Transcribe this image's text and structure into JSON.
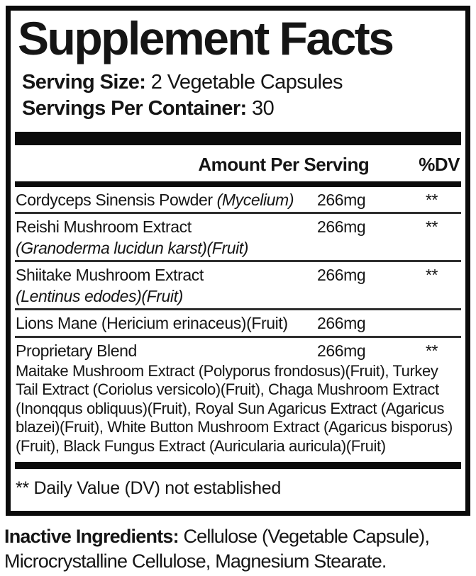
{
  "label": {
    "title": "Supplement Facts",
    "serving_size_label": "Serving Size:",
    "serving_size_value": " 2 Vegetable Capsules",
    "servings_per_container_label": "Servings Per Container:",
    "servings_per_container_value": " 30",
    "header": {
      "amount": "Amount Per Serving",
      "dv": "%DV"
    },
    "rows": [
      {
        "name": "Cordyceps Sinensis Powder ",
        "name_italic": "(Mycelium)",
        "amount": "266mg",
        "dv": "**"
      },
      {
        "name": "Reishi Mushroom Extract",
        "sub_italic": "(Granoderma lucidun karst)(Fruit)",
        "amount": "266mg",
        "dv": "**"
      },
      {
        "name": "Shiitake Mushroom Extract",
        "sub_italic": "(Lentinus edodes)(Fruit)",
        "amount": "266mg",
        "dv": "**"
      },
      {
        "name": "Lions Mane (Hericium erinaceus)(Fruit)",
        "amount": "266mg",
        "dv": ""
      },
      {
        "name": "Proprietary Blend",
        "amount": "266mg",
        "dv": "**",
        "description": "Maitake Mushroom Extract (Polyporus frondosus)(Fruit), Turkey Tail Extract (Coriolus versicolo)(Fruit), Chaga Mushroom Extract (Inonqqus obliquus)(Fruit), Royal Sun Agaricus Extract (Agaricus blazei)(Fruit), White Button Mushroom Extract (Agaricus bisporus) (Fruit), Black Fungus Extract (Auricularia auricula)(Fruit)"
      }
    ],
    "footnote": "** Daily Value (DV) not established",
    "inactive_label": "Inactive Ingredients:",
    "inactive_value": " Cellulose (Vegetable Capsule), Microcrystalline Cellulose, Magnesium Stearate."
  },
  "colors": {
    "ink": "#151515",
    "bar": "#0b0b0b",
    "background": "#ffffff"
  }
}
